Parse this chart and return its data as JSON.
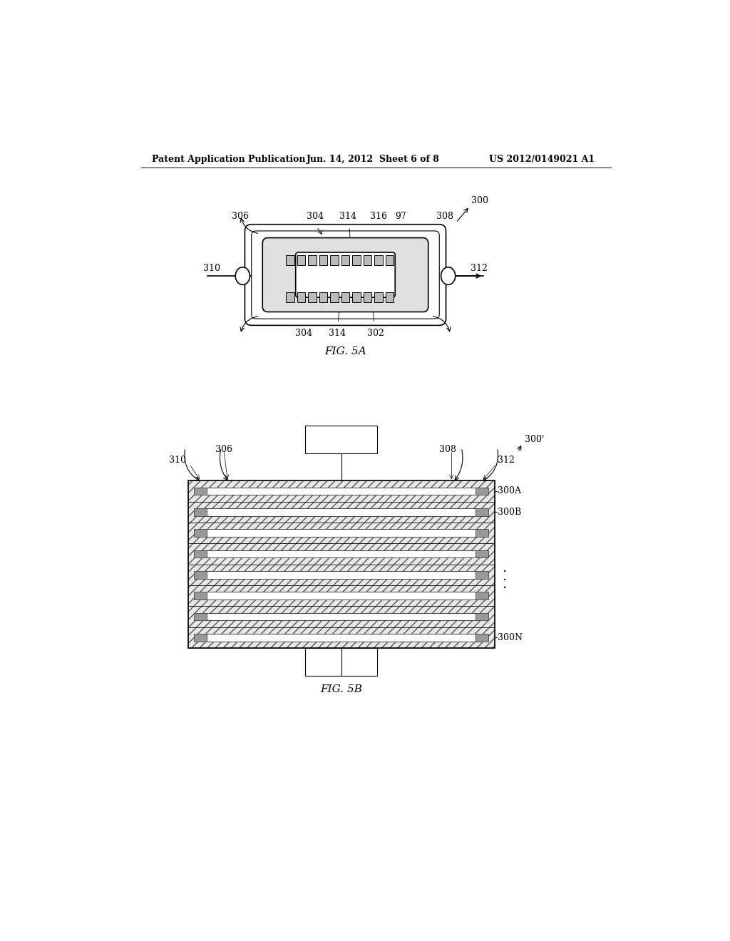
{
  "bg_color": "#ffffff",
  "line_color": "#000000",
  "gray_color": "#888888",
  "light_gray": "#cccccc",
  "hatch_color": "#aaaaaa",
  "header_text": "Patent Application Publication",
  "header_date": "Jun. 14, 2012  Sheet 6 of 8",
  "header_patent": "US 2012/0149021 A1",
  "fig5a_label": "FIG. 5A",
  "fig5b_label": "FIG. 5B"
}
